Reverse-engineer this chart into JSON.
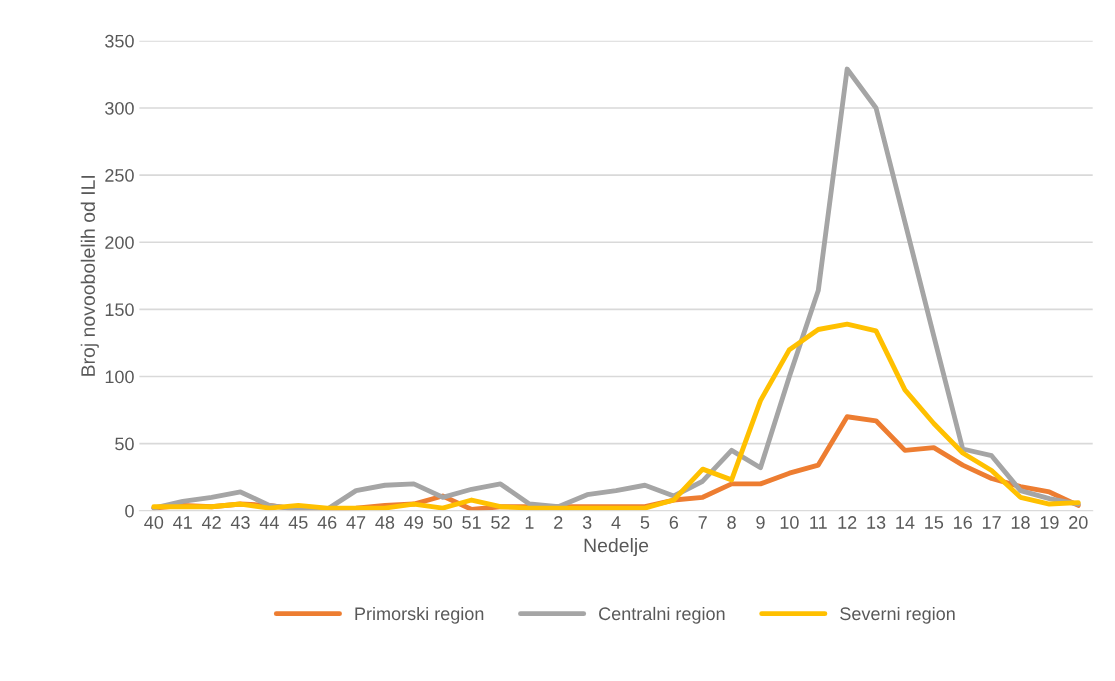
{
  "chart_data": {
    "type": "line",
    "xlabel": "Nedelje",
    "ylabel": "Broj novoobolelih od ILI",
    "categories": [
      "40",
      "41",
      "42",
      "43",
      "44",
      "45",
      "46",
      "47",
      "48",
      "49",
      "50",
      "51",
      "52",
      "1",
      "2",
      "3",
      "4",
      "5",
      "6",
      "7",
      "8",
      "9",
      "10",
      "11",
      "12",
      "13",
      "14",
      "15",
      "16",
      "17",
      "18",
      "19",
      "20"
    ],
    "series": [
      {
        "name": "Primorski region",
        "color": "#ed7d31",
        "values": [
          2,
          4,
          3,
          5,
          4,
          1,
          1,
          2,
          4,
          5,
          11,
          1,
          3,
          3,
          3,
          3,
          3,
          3,
          8,
          10,
          20,
          20,
          28,
          34,
          70,
          67,
          45,
          47,
          34,
          24,
          18,
          14,
          4
        ]
      },
      {
        "name": "Centralni region",
        "color": "#a5a5a5",
        "values": [
          2,
          7,
          10,
          14,
          4,
          1,
          1,
          15,
          19,
          20,
          10,
          16,
          20,
          5,
          3,
          12,
          15,
          19,
          11,
          22,
          45,
          32,
          100,
          164,
          329,
          300,
          215,
          130,
          46,
          41,
          15,
          9,
          5
        ]
      },
      {
        "name": "Severni region",
        "color": "#ffc000",
        "values": [
          3,
          3,
          3,
          5,
          2,
          4,
          2,
          2,
          2,
          5,
          2,
          8,
          3,
          2,
          2,
          2,
          2,
          2,
          8,
          31,
          23,
          82,
          120,
          135,
          139,
          134,
          90,
          65,
          43,
          30,
          10,
          5,
          6
        ]
      }
    ],
    "ylim": [
      0,
      350
    ],
    "yticks": [
      0,
      50,
      100,
      150,
      200,
      250,
      300,
      350
    ],
    "grid": "y",
    "legend": "bottom",
    "marker": "none",
    "line_style": "solid"
  }
}
